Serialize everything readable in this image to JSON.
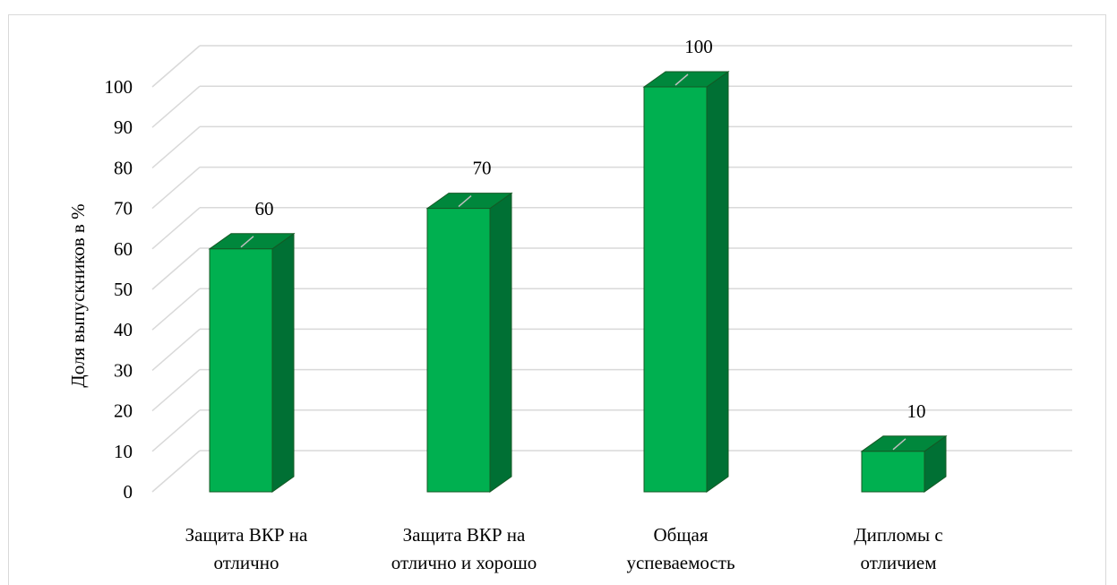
{
  "chart_data": {
    "type": "bar",
    "style": "3d-column",
    "categories": [
      [
        "Защита ВКР на",
        "отлично"
      ],
      [
        "Защита ВКР на",
        "отлично и хорошо"
      ],
      [
        "Общая",
        "успеваемость"
      ],
      [
        "Дипломы с",
        "отличием"
      ]
    ],
    "values": [
      60,
      70,
      100,
      10
    ],
    "data_labels": [
      "60",
      "70",
      "100",
      "10"
    ],
    "ylabel": "Доля выпускников в %",
    "xlabel": "",
    "ylim": [
      0,
      100
    ],
    "yticks": [
      "0",
      "10",
      "20",
      "30",
      "40",
      "50",
      "60",
      "70",
      "80",
      "90",
      "100"
    ],
    "grid": true,
    "legend": "none",
    "colors": {
      "bar_front": "#00b050",
      "bar_side": "#007034",
      "bar_top": "#00873c",
      "bar_edge": "#145a25",
      "grid": "#d9d9d9"
    }
  }
}
